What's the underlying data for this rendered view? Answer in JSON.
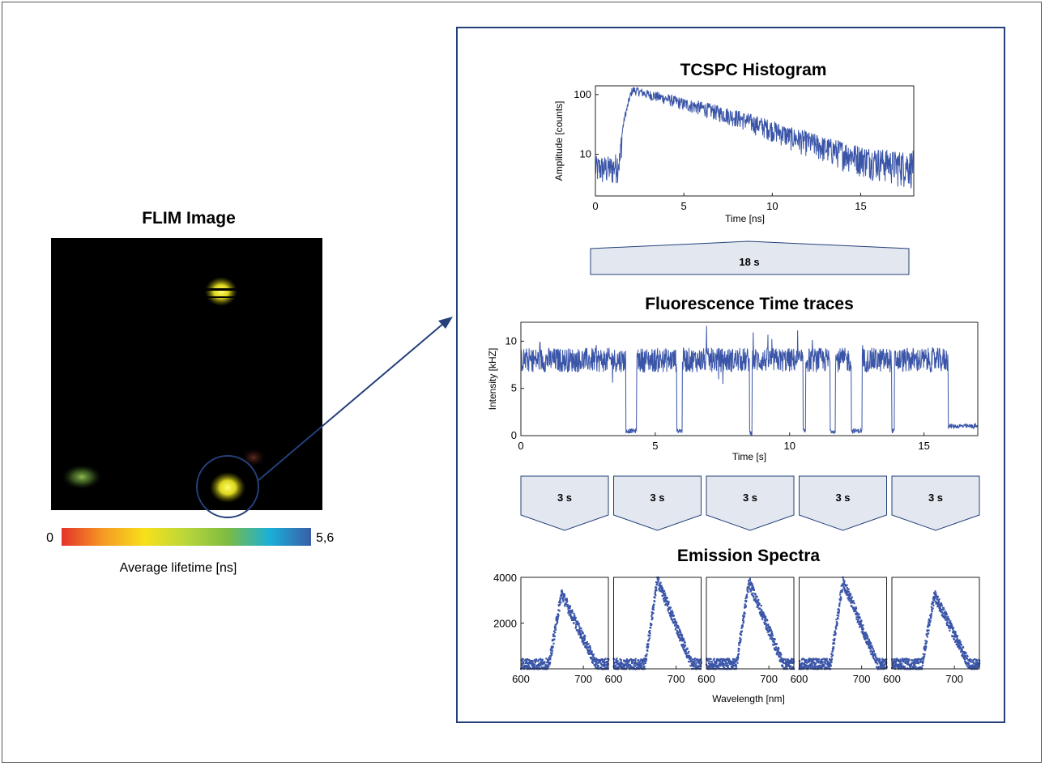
{
  "flim": {
    "title": "FLIM Image",
    "colorbar": {
      "min_label": "0",
      "max_label": "5,6",
      "label": "Average lifetime [ns]",
      "colors": [
        "#e5332a",
        "#f59a23",
        "#f7e01b",
        "#b9d63a",
        "#7dbb42",
        "#1ab0d8",
        "#3a5ea8"
      ]
    }
  },
  "panel": {
    "accent_color": "#24407a",
    "trace_color": "#3a55a8",
    "tcspc_title": "TCSPC Histogram",
    "bin_18_label": "18 s",
    "traces_title": "Fluorescence Time traces",
    "bin_3_labels": [
      "3 s",
      "3 s",
      "3 s",
      "3 s",
      "3 s"
    ],
    "spectra_title": "Emission Spectra"
  },
  "chart_data": [
    {
      "type": "line",
      "title": "TCSPC Histogram",
      "xlabel": "Time [ns]",
      "ylabel": "Amplitude [counts]",
      "xlim": [
        0,
        18
      ],
      "ylim": [
        2,
        140
      ],
      "yscale": "log",
      "xticks": [
        "0",
        "5",
        "10",
        "15"
      ],
      "yticks": [
        "10",
        "100"
      ],
      "series": [
        {
          "x": [
            0,
            1.0,
            1.4,
            1.8,
            2.1,
            3,
            5,
            7,
            9,
            11,
            13,
            15,
            17,
            18
          ],
          "values": [
            6,
            6,
            8,
            60,
            120,
            100,
            70,
            50,
            33,
            20,
            13,
            9,
            7,
            7
          ]
        }
      ]
    },
    {
      "type": "line",
      "title": "Fluorescence Time traces",
      "xlabel": "Time [s]",
      "ylabel": "Intensity [kHZ]",
      "xlim": [
        0,
        17
      ],
      "ylim": [
        0,
        12
      ],
      "xticks": [
        "0",
        "5",
        "10",
        "15"
      ],
      "yticks": [
        "0",
        "5",
        "10"
      ],
      "series": [
        {
          "x": [
            0,
            3.9,
            3.9,
            4.3,
            4.3,
            5.8,
            5.8,
            6.0,
            6.0,
            8.5,
            8.5,
            8.6,
            8.6,
            10.5,
            10.5,
            10.6,
            10.6,
            11.5,
            11.5,
            11.7,
            11.7,
            12.3,
            12.3,
            12.7,
            12.7,
            13.8,
            13.8,
            13.9,
            13.9,
            15.9,
            15.9,
            17
          ],
          "values": [
            8,
            8,
            0.5,
            0.5,
            8,
            8,
            0.5,
            0.5,
            8,
            8,
            0.3,
            0.3,
            8,
            8,
            0.5,
            0.5,
            8,
            8,
            0.5,
            0.5,
            8,
            8,
            0.5,
            0.5,
            8,
            8,
            0.5,
            0.5,
            8,
            8,
            1,
            1
          ]
        }
      ]
    },
    {
      "type": "scatter",
      "title": "Emission Spectra",
      "xlabel": "Wavelength [nm]",
      "ylabel": "",
      "xlim": [
        600,
        740
      ],
      "ylim": [
        0,
        4000
      ],
      "xticks": [
        "600",
        "700"
      ],
      "yticks": [
        "2000",
        "4000"
      ],
      "panels": [
        {
          "peak_x": 665,
          "peak_y": 3300
        },
        {
          "peak_x": 670,
          "peak_y": 3900
        },
        {
          "peak_x": 668,
          "peak_y": 3800
        },
        {
          "peak_x": 670,
          "peak_y": 3850
        },
        {
          "peak_x": 668,
          "peak_y": 3250
        }
      ]
    }
  ]
}
